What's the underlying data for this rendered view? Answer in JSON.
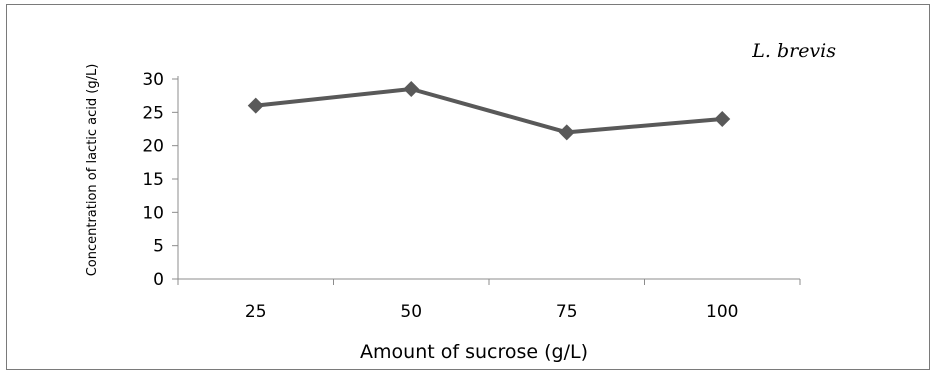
{
  "chart_data": {
    "type": "line",
    "x": [
      "25",
      "50",
      "75",
      "100"
    ],
    "series": [
      {
        "values": [
          26,
          28.5,
          22,
          24
        ],
        "color": "#595959",
        "marker": "diamond"
      }
    ],
    "title": "",
    "xlabel": "Amount of sucrose (g/L)",
    "ylabel": "Concentration of lactic acid (g/L)",
    "ylim": [
      0,
      30
    ],
    "yticks": [
      "0",
      "5",
      "10",
      "15",
      "20",
      "25",
      "30"
    ],
    "annotation": "L. brevis",
    "grid": false,
    "legend": "none"
  }
}
